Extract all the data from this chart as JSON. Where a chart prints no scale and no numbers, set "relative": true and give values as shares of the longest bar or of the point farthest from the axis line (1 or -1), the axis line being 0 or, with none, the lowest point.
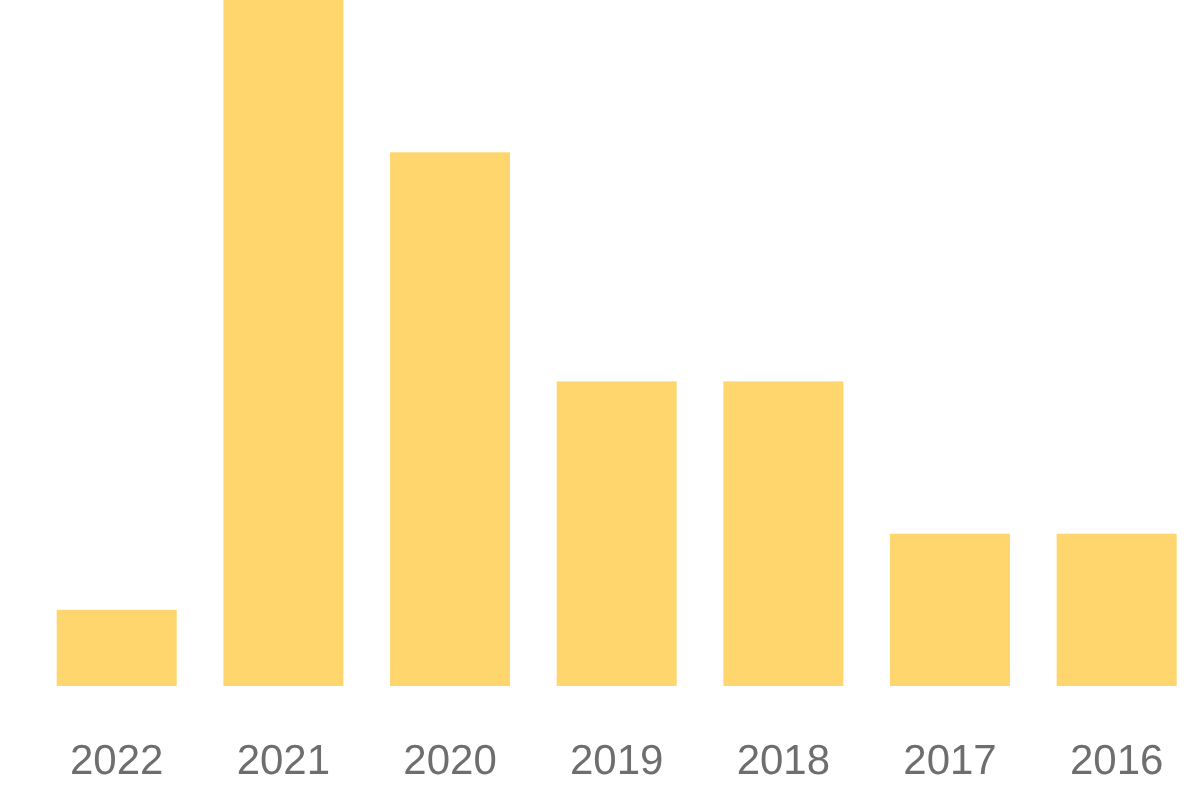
{
  "chart_data": {
    "type": "bar",
    "relative": true,
    "categories": [
      "2022",
      "2021",
      "2020",
      "2019",
      "2018",
      "2017",
      "2016"
    ],
    "values": [
      0.111,
      1,
      0.778,
      0.444,
      0.444,
      0.222,
      0.222
    ],
    "color": "#fed66d"
  }
}
